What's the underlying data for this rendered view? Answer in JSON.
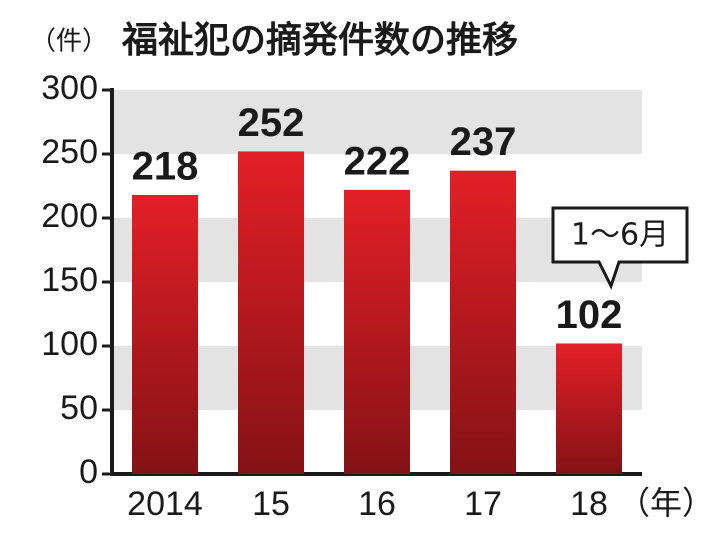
{
  "chart_data": {
    "type": "bar",
    "title": "福祉犯の摘発件数の推移",
    "y_unit": "（件）",
    "x_unit": "（年）",
    "annotation": "1〜6月",
    "categories": [
      "2014",
      "15",
      "16",
      "17",
      "18"
    ],
    "values": [
      218,
      252,
      222,
      237,
      102
    ],
    "color": "#e31f26",
    "band_color": "#e3e3e3",
    "ylim": [
      0,
      300
    ],
    "yticks": [
      0,
      50,
      100,
      150,
      200,
      250,
      300
    ],
    "grid": "bands"
  }
}
